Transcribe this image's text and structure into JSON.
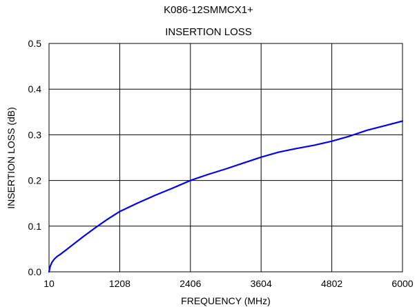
{
  "chart_data": {
    "type": "line",
    "title": "K086-12SMMCX1+",
    "subtitle": "INSERTION LOSS",
    "xlabel": "FREQUENCY (MHz)",
    "ylabel": "INSERTION LOSS (dB)",
    "xlim": [
      10,
      6000
    ],
    "ylim": [
      0,
      0.5
    ],
    "xticks": [
      10,
      1208,
      2406,
      3604,
      4802,
      6000
    ],
    "xtick_labels": [
      "10",
      "1208",
      "2406",
      "3604",
      "4802",
      "6000"
    ],
    "yticks": [
      0,
      0.1,
      0.2,
      0.3,
      0.4,
      0.5
    ],
    "ytick_labels": [
      "0.0",
      "0.1",
      "0.2",
      "0.3",
      "0.4",
      "0.5"
    ],
    "grid": true,
    "series": [
      {
        "color": "#0000ff",
        "x": [
          10,
          30,
          60,
          100,
          150,
          200,
          300,
          450,
          600,
          800,
          1000,
          1208,
          1500,
          1800,
          2100,
          2406,
          2700,
          3000,
          3300,
          3604,
          3900,
          4200,
          4500,
          4802,
          5100,
          5400,
          5700,
          6000
        ],
        "y": [
          0.0,
          0.012,
          0.021,
          0.028,
          0.034,
          0.038,
          0.048,
          0.063,
          0.078,
          0.097,
          0.115,
          0.132,
          0.15,
          0.167,
          0.183,
          0.2,
          0.213,
          0.225,
          0.238,
          0.251,
          0.262,
          0.27,
          0.277,
          0.286,
          0.297,
          0.31,
          0.32,
          0.33
        ]
      }
    ]
  },
  "colors": {
    "grid": "#000000",
    "line": "#0000ff",
    "background": "#ffffff"
  }
}
